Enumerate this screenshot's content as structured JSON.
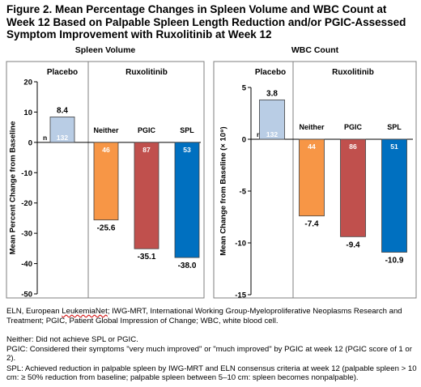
{
  "figure_title": "Figure 2. Mean Percentage Changes in Spleen Volume and WBC Count at Week 12 Based on Palpable Spleen Length Reduction and/or PGIC-Assessed Symptom Improvement with Ruxolitinib at Week 12",
  "colors": {
    "placebo": "#b9cde5",
    "neither": "#f79646",
    "pgic": "#c0504d",
    "spl": "#0070c0",
    "frame": "#7f7f7f"
  },
  "chart_data": [
    {
      "type": "bar",
      "title": "Spleen Volume",
      "ylabel": "Mean Percent Change from Baseline",
      "ylim": [
        -50,
        20
      ],
      "yticks": [
        20,
        10,
        0,
        -10,
        -20,
        -30,
        -40,
        -50
      ],
      "group_labels": [
        "Placebo",
        "Ruxolitinib"
      ],
      "n_label": "n",
      "categories": [
        "Placebo",
        "Neither",
        "PGIC",
        "SPL"
      ],
      "category_labels": [
        "",
        "Neither",
        "PGIC",
        "SPL"
      ],
      "values": [
        8.4,
        -25.6,
        -35.1,
        -38.0
      ],
      "value_labels": [
        "8.4",
        "-25.6",
        "-35.1",
        "-38.0"
      ],
      "n": [
        "132",
        "46",
        "87",
        "53"
      ]
    },
    {
      "type": "bar",
      "title": "WBC Count",
      "ylabel": "Mean Change from Baseline (× 10⁹)",
      "ylim": [
        -15,
        5
      ],
      "yticks": [
        5,
        0,
        -5,
        -10,
        -15
      ],
      "group_labels": [
        "Placebo",
        "Ruxolitinib"
      ],
      "n_label": "n",
      "categories": [
        "Placebo",
        "Neither",
        "PGIC",
        "SPL"
      ],
      "category_labels": [
        "",
        "Neither",
        "PGIC",
        "SPL"
      ],
      "values": [
        3.8,
        -7.4,
        -9.4,
        -10.9
      ],
      "value_labels": [
        "3.8",
        "-7.4",
        "-9.4",
        "-10.9"
      ],
      "n": [
        "132",
        "44",
        "86",
        "51"
      ]
    }
  ],
  "footnotes": {
    "abbrev_1": "ELN, European ",
    "abbrev_leukemianet": "LeukemiaNet",
    "abbrev_2": "; IWG-MRT, International Working Group-Myeloproliferative Neoplasms Research and Treatment; PGIC, Patient Global Impression of Change; WBC, white blood cell.",
    "neither": "Neither: Did not achieve SPL or PGIC.",
    "pgic": "PGIC: Considered their symptoms \"very much improved\" or \"much improved\" by PGIC at week 12 (PGIC score of 1 or 2).",
    "spl": "SPL: Achieved reduction in palpable spleen by IWG-MRT and ELN consensus criteria at week 12 (palpable spleen > 10 cm: ≥ 50% reduction from baseline; palpable spleen between 5–10 cm: spleen becomes nonpalpable)."
  }
}
